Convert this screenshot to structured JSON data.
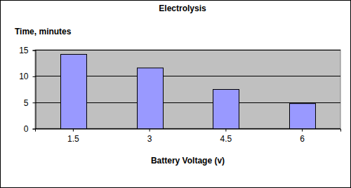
{
  "chart_data": {
    "type": "bar",
    "title": "Electrolysis",
    "x_label": "Battery Voltage (v)",
    "y_label": "Time, minutes",
    "categories": [
      "1.5",
      "3",
      "4.5",
      "6"
    ],
    "values": [
      14.2,
      11.6,
      7.5,
      4.8
    ],
    "color": "#9999ff",
    "ylim": [
      0,
      15
    ],
    "yticks": [
      0,
      5,
      10,
      15
    ],
    "grid": true
  }
}
